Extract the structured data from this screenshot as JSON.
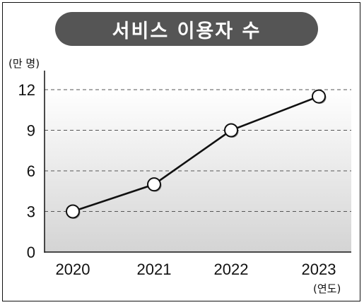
{
  "chart_data": {
    "type": "line",
    "title": "서비스 이용자 수",
    "ylabel": "(만 명)",
    "xlabel": "(연도)",
    "categories": [
      "2020",
      "2021",
      "2022",
      "2023"
    ],
    "values": [
      3,
      5,
      9,
      11.5
    ],
    "ylim": [
      0,
      12
    ],
    "yticks": [
      "0",
      "3",
      "6",
      "9",
      "12"
    ],
    "grid": true,
    "colors": {
      "title_bg": "#555555",
      "line": "#111111",
      "marker_fill": "#ffffff"
    }
  }
}
